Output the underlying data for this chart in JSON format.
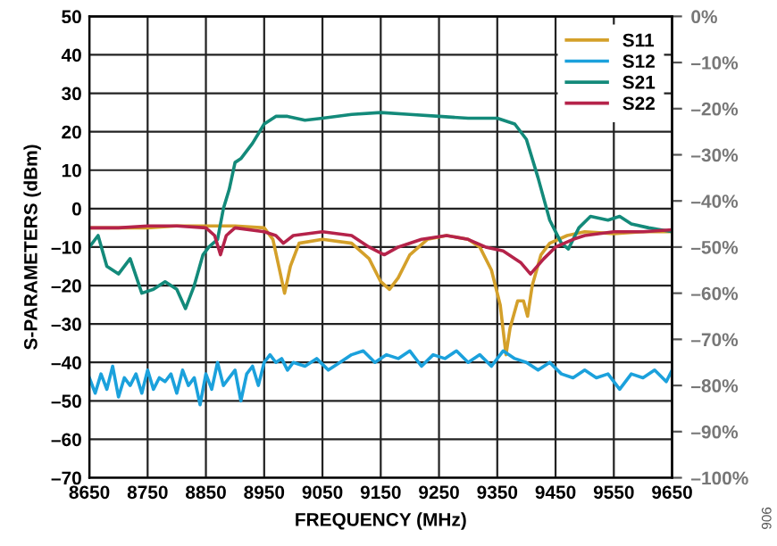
{
  "chart_data": {
    "type": "line",
    "xlabel": "FREQUENCY (MHz)",
    "ylabel": "S-PARAMETERS (dBm)",
    "xlim": [
      8650,
      9650
    ],
    "xticks": [
      8650,
      8750,
      8850,
      8950,
      9050,
      9150,
      9250,
      9350,
      9450,
      9550,
      9650
    ],
    "ylim": [
      -70,
      50
    ],
    "yticks": [
      {
        "value": -70,
        "label": "–70"
      },
      {
        "value": -60,
        "label": "–60"
      },
      {
        "value": -50,
        "label": "–50"
      },
      {
        "value": -40,
        "label": "–40"
      },
      {
        "value": -30,
        "label": "–30"
      },
      {
        "value": -20,
        "label": "–20"
      },
      {
        "value": -10,
        "label": "–10"
      },
      0,
      10,
      20,
      30,
      40,
      50
    ],
    "y2lim": [
      -100,
      0
    ],
    "y2ticks": [
      {
        "value": -100,
        "label": "–100%"
      },
      {
        "value": -90,
        "label": "–90%"
      },
      {
        "value": -80,
        "label": "–80%"
      },
      {
        "value": -70,
        "label": "–70%"
      },
      {
        "value": -60,
        "label": "–60%"
      },
      {
        "value": -50,
        "label": "–50%"
      },
      {
        "value": -40,
        "label": "–40%"
      },
      {
        "value": -30,
        "label": "–30%"
      },
      {
        "value": -20,
        "label": "–20%"
      },
      {
        "value": -10,
        "label": "–10%"
      },
      {
        "value": 0,
        "label": "0%"
      }
    ],
    "grid": true,
    "legend": "top right",
    "annotations": [
      "906"
    ],
    "series": [
      {
        "name": "S11",
        "color": "#d4a02a",
        "x": [
          8650,
          8700,
          8750,
          8800,
          8850,
          8900,
          8950,
          8965,
          8975,
          8985,
          8995,
          9010,
          9050,
          9100,
          9130,
          9150,
          9165,
          9180,
          9200,
          9230,
          9263,
          9300,
          9320,
          9340,
          9355,
          9365,
          9372,
          9385,
          9395,
          9402,
          9410,
          9425,
          9440,
          9470,
          9500,
          9550,
          9600,
          9650
        ],
        "values": [
          -5,
          -5,
          -5,
          -4.5,
          -4.5,
          -4.5,
          -5,
          -8,
          -15,
          -22,
          -15,
          -9,
          -8,
          -9,
          -13,
          -19,
          -21,
          -18,
          -12,
          -8,
          -7,
          -8,
          -10,
          -16,
          -25,
          -38,
          -31,
          -24,
          -24,
          -28,
          -20,
          -12,
          -9,
          -7,
          -6,
          -6.5,
          -6,
          -6
        ]
      },
      {
        "name": "S12",
        "color": "#1ba1dc",
        "x": [
          8650,
          8660,
          8670,
          8680,
          8690,
          8700,
          8710,
          8720,
          8730,
          8740,
          8750,
          8760,
          8770,
          8780,
          8790,
          8800,
          8810,
          8820,
          8830,
          8840,
          8850,
          8860,
          8870,
          8880,
          8890,
          8900,
          8910,
          8920,
          8930,
          8940,
          8950,
          8960,
          8970,
          8980,
          8990,
          9000,
          9020,
          9040,
          9060,
          9080,
          9100,
          9120,
          9140,
          9160,
          9180,
          9200,
          9220,
          9240,
          9260,
          9280,
          9300,
          9320,
          9340,
          9360,
          9380,
          9400,
          9420,
          9440,
          9460,
          9480,
          9500,
          9520,
          9540,
          9560,
          9580,
          9600,
          9620,
          9640,
          9650
        ],
        "values": [
          -44,
          -48,
          -43,
          -47,
          -41,
          -49,
          -44,
          -46,
          -43,
          -48,
          -42,
          -47,
          -44,
          -45,
          -43,
          -48,
          -42,
          -46,
          -44,
          -51,
          -43,
          -47,
          -40,
          -46,
          -44,
          -42,
          -50,
          -43,
          -41,
          -46,
          -40,
          -38,
          -40,
          -39,
          -42,
          -40,
          -41,
          -39,
          -42,
          -40,
          -38,
          -37,
          -40,
          -38,
          -39,
          -37,
          -41,
          -38,
          -39,
          -37,
          -40,
          -38,
          -41,
          -37,
          -39,
          -40,
          -42,
          -40,
          -43,
          -44,
          -42,
          -44,
          -43,
          -47,
          -43,
          -44,
          -42,
          -45,
          -42
        ]
      },
      {
        "name": "S21",
        "color": "#138a7a",
        "x": [
          8650,
          8665,
          8680,
          8700,
          8720,
          8740,
          8760,
          8780,
          8800,
          8815,
          8830,
          8845,
          8855,
          8870,
          8880,
          8890,
          8900,
          8910,
          8930,
          8950,
          8970,
          8990,
          9020,
          9050,
          9100,
          9150,
          9200,
          9250,
          9300,
          9350,
          9380,
          9400,
          9420,
          9440,
          9460,
          9472,
          9490,
          9510,
          9540,
          9560,
          9580,
          9610,
          9650
        ],
        "values": [
          -10,
          -7,
          -15,
          -17,
          -13,
          -22,
          -21,
          -19,
          -21,
          -26,
          -20,
          -12,
          -10,
          -8,
          0,
          5,
          12,
          13,
          17,
          22,
          24,
          24,
          23,
          23.5,
          24.5,
          25,
          24.5,
          24,
          23.5,
          23.5,
          22,
          18,
          8,
          -3,
          -9,
          -10.5,
          -5,
          -2,
          -3,
          -2,
          -4,
          -5,
          -6
        ]
      },
      {
        "name": "S22",
        "color": "#b5234a",
        "x": [
          8650,
          8700,
          8750,
          8800,
          8850,
          8865,
          8875,
          8885,
          8900,
          8950,
          8970,
          8983,
          9000,
          9050,
          9100,
          9130,
          9156,
          9180,
          9220,
          9263,
          9300,
          9330,
          9360,
          9390,
          9407,
          9430,
          9450,
          9480,
          9500,
          9550,
          9600,
          9650
        ],
        "values": [
          -5,
          -5,
          -4.5,
          -4.5,
          -5,
          -7,
          -12,
          -7,
          -5,
          -6,
          -7,
          -9,
          -7,
          -6,
          -7,
          -10,
          -12,
          -10,
          -8,
          -7,
          -8,
          -10,
          -11,
          -14,
          -17,
          -13,
          -10,
          -8,
          -7,
          -6,
          -6,
          -5.5
        ]
      }
    ]
  }
}
